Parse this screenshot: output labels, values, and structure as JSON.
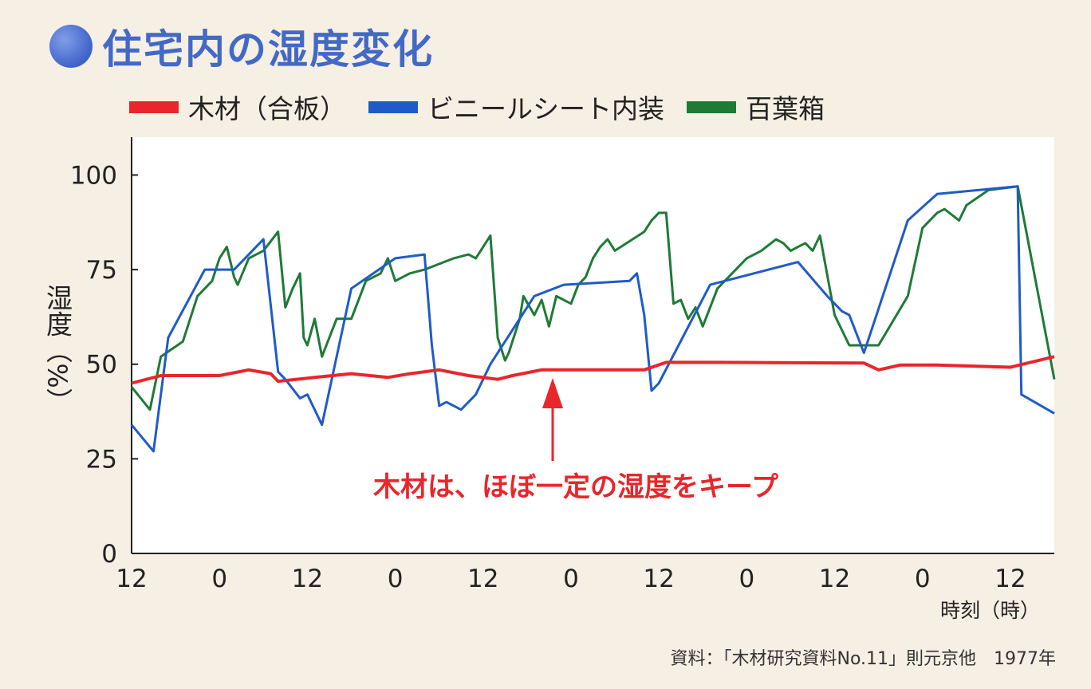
{
  "title": "住宅内の湿度変化",
  "legend": [
    {
      "label": "木材（合板）",
      "color": "#e8262b"
    },
    {
      "label": "ビニールシート内装",
      "color": "#1f5bc8"
    },
    {
      "label": "百葉箱",
      "color": "#1f7a36"
    }
  ],
  "annotation": "木材は、ほぼ一定の湿度をキープ",
  "source": "資料：「木材研究資料No.11」則元京他　1977年",
  "chart_data": {
    "type": "line",
    "ylabel": "湿度（%）",
    "xlabel": "時刻（時）",
    "ylim": [
      0,
      110
    ],
    "yticks": [
      0,
      25,
      50,
      75,
      100
    ],
    "xlim": [
      0,
      126
    ],
    "xtick_positions": [
      0,
      12,
      24,
      36,
      48,
      60,
      72,
      84,
      96,
      108,
      120
    ],
    "xtick_labels": [
      "12",
      "0",
      "12",
      "0",
      "12",
      "0",
      "12",
      "0",
      "12",
      "0",
      "12"
    ],
    "annotation_arrow_x": 57.5,
    "series": [
      {
        "name": "木材（合板）",
        "color": "#e8262b",
        "x": [
          0,
          4,
          12,
          16,
          19,
          20,
          25,
          30,
          35,
          38,
          42,
          46,
          50,
          52,
          56,
          70,
          73,
          80,
          100,
          102,
          105,
          110,
          120,
          126
        ],
        "y": [
          45,
          47,
          47,
          48.5,
          47.5,
          45.5,
          46.5,
          47.5,
          46.5,
          47.5,
          48.5,
          47,
          46,
          47,
          48.5,
          48.5,
          50.5,
          50.5,
          50.3,
          48.5,
          49.8,
          49.8,
          49.2,
          52
        ]
      },
      {
        "name": "ビニールシート内装",
        "color": "#1f5bc8",
        "x": [
          0,
          3,
          5,
          10,
          14,
          18,
          20,
          21,
          23,
          24,
          26,
          30,
          36,
          40,
          41,
          42,
          43,
          45,
          47,
          49,
          55,
          59,
          68,
          69,
          70,
          71,
          72,
          79,
          91,
          95,
          97,
          98,
          100,
          106,
          110,
          121,
          121.5,
          126
        ],
        "y": [
          34,
          27,
          57,
          75,
          75,
          83,
          48,
          46,
          41,
          42,
          34,
          70,
          78,
          79,
          55,
          39,
          40,
          38,
          42,
          50,
          68,
          71,
          72,
          74,
          63,
          43,
          45,
          71,
          77,
          68,
          64,
          63,
          53,
          88,
          95,
          97,
          42,
          37
        ]
      },
      {
        "name": "百葉箱",
        "color": "#1f7a36",
        "x": [
          0,
          2.5,
          4,
          7,
          9,
          11,
          12,
          13,
          14,
          14.5,
          16,
          18,
          20,
          21,
          22,
          23,
          23.5,
          24,
          25,
          26,
          28,
          30,
          32,
          34,
          35,
          36,
          38,
          40,
          44,
          46,
          47,
          49,
          50,
          51,
          51.5,
          53,
          53.5,
          55,
          56,
          57,
          58,
          59,
          60,
          61,
          62,
          63,
          64,
          65,
          66,
          70,
          71,
          72,
          73,
          74,
          75,
          76,
          77,
          78,
          80,
          84,
          86,
          88,
          89,
          90,
          91,
          92,
          93,
          94,
          96,
          98,
          100,
          102,
          106,
          108,
          110,
          111,
          113,
          114,
          117,
          121,
          126
        ],
        "y": [
          44,
          38,
          52,
          56,
          68,
          72,
          78,
          81,
          73,
          71,
          78,
          80,
          85,
          65,
          70,
          74,
          57,
          55,
          62,
          52,
          62,
          62,
          72,
          74,
          78,
          72,
          74,
          75,
          78,
          79,
          78,
          84,
          57,
          51,
          53,
          62,
          68,
          63,
          67,
          60,
          68,
          67,
          66,
          71,
          73,
          78,
          81,
          83,
          80,
          85,
          88,
          90,
          90,
          66,
          67,
          62,
          65,
          60,
          70,
          78,
          80,
          83,
          82,
          80,
          81,
          82,
          80,
          84,
          63,
          55,
          55,
          55,
          68,
          86,
          90,
          91,
          88,
          92,
          96,
          97,
          46
        ]
      }
    ]
  }
}
